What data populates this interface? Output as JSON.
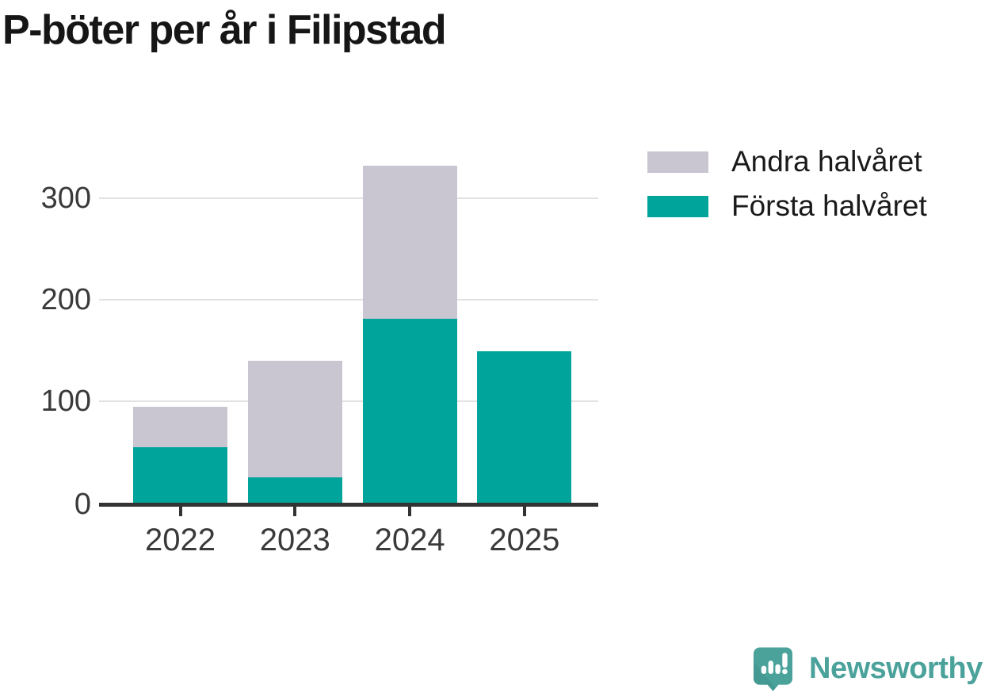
{
  "chart": {
    "title": "P-böter per år i Filipstad"
  },
  "chart_data": {
    "type": "bar",
    "stacked": true,
    "title": "P-böter per år i Filipstad",
    "categories": [
      "2022",
      "2023",
      "2024",
      "2025"
    ],
    "series": [
      {
        "name": "Första halvåret",
        "color": "#00a49b",
        "values": [
          55,
          25,
          181,
          149
        ]
      },
      {
        "name": "Andra halvåret",
        "color": "#c9c6d1",
        "values": [
          40,
          115,
          151,
          0
        ]
      }
    ],
    "totals": [
      95,
      140,
      332,
      149
    ],
    "xlabel": "",
    "ylabel": "",
    "ylim": [
      0,
      350
    ],
    "yticks": [
      0,
      100,
      200,
      300
    ],
    "grid": "horizontal",
    "legend": {
      "position": "top-right",
      "entries": [
        {
          "label": "Andra halvåret",
          "color": "#c9c6d1"
        },
        {
          "label": "Första halvåret",
          "color": "#00a49b"
        }
      ]
    }
  },
  "branding": {
    "name": "Newsworthy",
    "color": "#4aa29b"
  },
  "colors": {
    "title_text": "#161616",
    "axis_text": "#3a3a3a",
    "grid_line": "#e2e2e2",
    "axis_line": "#333333",
    "background": "#ffffff"
  }
}
